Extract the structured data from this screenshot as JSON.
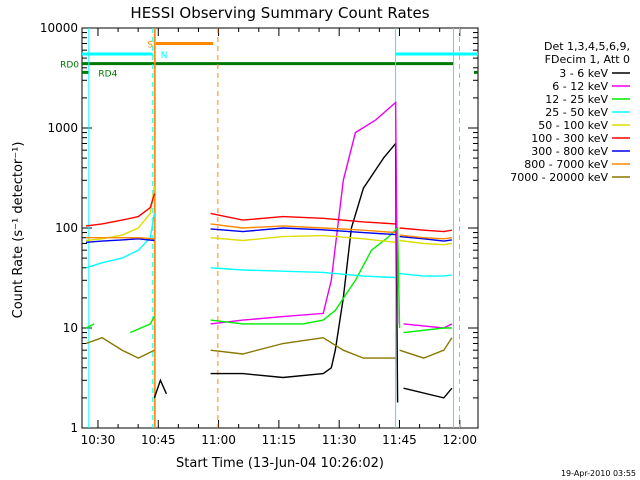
{
  "chart_data": {
    "type": "line",
    "title": "HESSI Observing Summary Count Rates",
    "xlabel": "Start Time (13-Jun-04 10:26:02)",
    "ylabel": "Count Rate (s⁻¹ detector⁻¹)",
    "x_unit": "minutes since 10:26:02",
    "xlim": [
      0,
      98.5
    ],
    "ylim": [
      1,
      10000
    ],
    "yscale": "log",
    "x_ticks": [
      {
        "x": 3.97,
        "label": "10:30"
      },
      {
        "x": 18.97,
        "label": "10:45"
      },
      {
        "x": 33.97,
        "label": "11:00"
      },
      {
        "x": 48.97,
        "label": "11:15"
      },
      {
        "x": 63.97,
        "label": "11:30"
      },
      {
        "x": 78.97,
        "label": "11:45"
      },
      {
        "x": 93.97,
        "label": "12:00"
      }
    ],
    "y_ticks": [
      {
        "y": 1,
        "label": "1"
      },
      {
        "y": 10,
        "label": "10"
      },
      {
        "y": 100,
        "label": "100"
      },
      {
        "y": 1000,
        "label": "1000"
      },
      {
        "y": 10000,
        "label": "10000"
      }
    ],
    "legend_header": [
      "Det 1,3,4,5,6,9,",
      "FDecim 1, Att 0"
    ],
    "legend_position": "right",
    "series": [
      {
        "name": "3 - 6 keV",
        "color": "#000000",
        "segments": [
          [
            [
              18,
              2
            ],
            [
              19.5,
              3
            ],
            [
              21,
              2.2
            ]
          ],
          [
            [
              32,
              3.5
            ],
            [
              40,
              3.5
            ],
            [
              50,
              3.2
            ],
            [
              60,
              3.5
            ],
            [
              62,
              4
            ],
            [
              63,
              6
            ],
            [
              65,
              20
            ],
            [
              67,
              100
            ],
            [
              70,
              250
            ],
            [
              75,
              500
            ],
            [
              78,
              700
            ],
            [
              78.5,
              1.8
            ]
          ],
          [
            [
              80,
              2.5
            ],
            [
              90,
              2
            ],
            [
              92,
              2.5
            ]
          ]
        ]
      },
      {
        "name": "6 - 12 keV",
        "color": "#ee00ee",
        "segments": [
          [
            [
              32,
              11
            ],
            [
              40,
              12
            ],
            [
              50,
              13
            ],
            [
              60,
              14
            ],
            [
              62,
              30
            ],
            [
              65,
              300
            ],
            [
              68,
              900
            ],
            [
              73,
              1200
            ],
            [
              78,
              1800
            ],
            [
              78.5,
              11
            ]
          ],
          [
            [
              80,
              11
            ],
            [
              90,
              10
            ],
            [
              92,
              11
            ]
          ]
        ]
      },
      {
        "name": "12 - 25 keV",
        "color": "#00ee00",
        "segments": [
          [
            [
              1,
              10
            ],
            [
              3,
              11
            ]
          ],
          [
            [
              12,
              9
            ],
            [
              17,
              11
            ],
            [
              18,
              13
            ]
          ],
          [
            [
              32,
              12
            ],
            [
              40,
              11
            ],
            [
              50,
              11
            ],
            [
              55,
              11
            ],
            [
              60,
              12
            ],
            [
              63,
              15
            ],
            [
              68,
              30
            ],
            [
              72,
              60
            ],
            [
              76,
              80
            ],
            [
              78.5,
              100
            ],
            [
              79,
              10
            ]
          ],
          [
            [
              80,
              9
            ],
            [
              90,
              10
            ],
            [
              92,
              10
            ]
          ]
        ]
      },
      {
        "name": "25 - 50 keV",
        "color": "#00ffff",
        "segments": [
          [
            [
              1,
              40
            ],
            [
              5,
              45
            ],
            [
              10,
              50
            ],
            [
              14,
              60
            ],
            [
              17,
              80
            ],
            [
              18,
              140
            ]
          ],
          [
            [
              32,
              40
            ],
            [
              40,
              38
            ],
            [
              50,
              37
            ],
            [
              60,
              36
            ],
            [
              70,
              33
            ],
            [
              78,
              32
            ]
          ],
          [
            [
              79,
              35
            ],
            [
              85,
              33
            ],
            [
              90,
              33
            ],
            [
              92,
              34
            ]
          ]
        ]
      },
      {
        "name": "50 - 100 keV",
        "color": "#dddd00",
        "segments": [
          [
            [
              1,
              75
            ],
            [
              5,
              78
            ],
            [
              10,
              85
            ],
            [
              14,
              100
            ],
            [
              17,
              140
            ],
            [
              18,
              260
            ]
          ],
          [
            [
              32,
              80
            ],
            [
              40,
              75
            ],
            [
              50,
              82
            ],
            [
              60,
              84
            ],
            [
              70,
              78
            ],
            [
              78,
              72
            ]
          ],
          [
            [
              79,
              75
            ],
            [
              85,
              70
            ],
            [
              90,
              68
            ],
            [
              92,
              70
            ]
          ]
        ]
      },
      {
        "name": "100 - 300 keV",
        "color": "#ff0000",
        "segments": [
          [
            [
              1,
              105
            ],
            [
              5,
              110
            ],
            [
              10,
              120
            ],
            [
              14,
              130
            ],
            [
              17,
              160
            ],
            [
              18,
              220
            ]
          ],
          [
            [
              32,
              140
            ],
            [
              40,
              120
            ],
            [
              50,
              130
            ],
            [
              60,
              125
            ],
            [
              70,
              115
            ],
            [
              78,
              110
            ]
          ],
          [
            [
              79,
              100
            ],
            [
              85,
              95
            ],
            [
              90,
              92
            ],
            [
              92,
              95
            ]
          ]
        ]
      },
      {
        "name": "300 - 800 keV",
        "color": "#0000ee",
        "segments": [
          [
            [
              1,
              72
            ],
            [
              5,
              74
            ],
            [
              10,
              76
            ],
            [
              14,
              78
            ],
            [
              18,
              75
            ]
          ],
          [
            [
              32,
              98
            ],
            [
              40,
              92
            ],
            [
              50,
              100
            ],
            [
              60,
              96
            ],
            [
              70,
              90
            ],
            [
              78,
              86
            ]
          ],
          [
            [
              79,
              82
            ],
            [
              85,
              78
            ],
            [
              90,
              74
            ],
            [
              92,
              76
            ]
          ]
        ]
      },
      {
        "name": "800 - 7000 keV",
        "color": "#ff8800",
        "segments": [
          [
            [
              1,
              80
            ],
            [
              5,
              80
            ],
            [
              10,
              80
            ],
            [
              14,
              80
            ],
            [
              18,
              78
            ]
          ],
          [
            [
              32,
              110
            ],
            [
              40,
              100
            ],
            [
              50,
              105
            ],
            [
              60,
              100
            ],
            [
              70,
              95
            ],
            [
              78,
              90
            ]
          ],
          [
            [
              79,
              85
            ],
            [
              85,
              80
            ],
            [
              90,
              78
            ],
            [
              92,
              80
            ]
          ]
        ]
      },
      {
        "name": "7000 - 20000 keV",
        "color": "#887700",
        "segments": [
          [
            [
              1,
              7
            ],
            [
              5,
              8
            ],
            [
              10,
              6
            ],
            [
              14,
              5
            ],
            [
              18,
              6
            ]
          ],
          [
            [
              32,
              6
            ],
            [
              40,
              5.5
            ],
            [
              50,
              7
            ],
            [
              60,
              8
            ],
            [
              65,
              6
            ],
            [
              70,
              5
            ],
            [
              78,
              5
            ]
          ],
          [
            [
              79,
              6
            ],
            [
              85,
              5
            ],
            [
              90,
              6
            ],
            [
              92,
              8
            ]
          ]
        ]
      }
    ],
    "vlines": [
      {
        "x": 1.7,
        "color": "#00ffff",
        "style": "solid"
      },
      {
        "x": 17.6,
        "color": "#00ffff",
        "style": "dashed"
      },
      {
        "x": 18.0,
        "color": "#ff8800",
        "style": "solid"
      },
      {
        "x": 18.2,
        "color": "#ff8800",
        "style": "solid"
      },
      {
        "x": 33.8,
        "color": "#ff8800",
        "style": "dashed"
      },
      {
        "x": 78.0,
        "color": "#00ffff",
        "style": "solid"
      },
      {
        "x": 92.4,
        "color": "#00ffff",
        "style": "solid"
      },
      {
        "x": 93.9,
        "color": "#00ffff",
        "style": "dashed"
      }
    ],
    "hbars": [
      {
        "label": "RD0",
        "y": 4400,
        "x0": 0,
        "x1": 92.4,
        "color": "#007700",
        "thick": true,
        "label_pos": "left"
      },
      {
        "label": "RD4",
        "y": 3600,
        "x0": 0,
        "x1": 1.6,
        "color": "#007700",
        "thick": true,
        "label_pos": "inside"
      },
      {
        "label": "S",
        "y": 7000,
        "x0": 18.4,
        "x1": 32.6,
        "color": "#ff8800",
        "thick": true,
        "label_pos": "left"
      },
      {
        "label": "N",
        "y": 5500,
        "x0": 0,
        "x1": 17.6,
        "color": "#00ffff",
        "thick": true,
        "label_pos": "right"
      },
      {
        "label": "",
        "y": 5500,
        "x0": 78.0,
        "x1": 98.5,
        "color": "#00ffff",
        "thick": true,
        "label_pos": "none"
      },
      {
        "label": "",
        "y": 3600,
        "x0": 97.5,
        "x1": 98.5,
        "color": "#007700",
        "thick": true,
        "label_pos": "none"
      }
    ],
    "footer_timestamp": "19-Apr-2010 03:55"
  }
}
